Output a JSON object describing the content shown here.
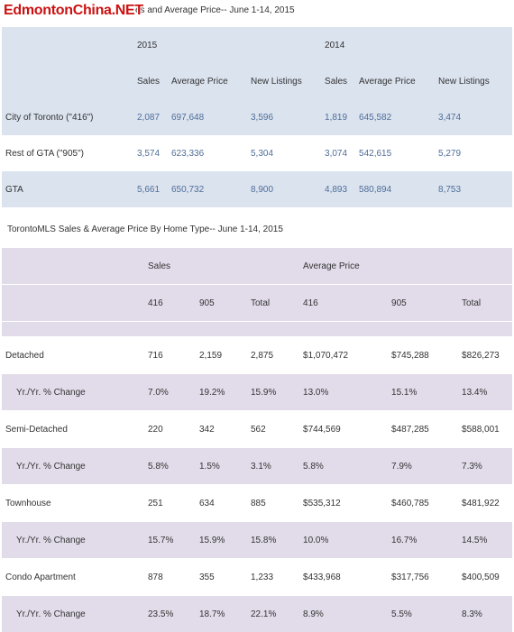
{
  "watermark": "EdmontonChina.NET",
  "table1": {
    "title": "es and Average Price-- June 1-14, 2015",
    "years": [
      "2015",
      "2014"
    ],
    "columns": [
      "Sales",
      "Average Price",
      "New Listings",
      "Sales",
      "Average Price",
      "New Listings"
    ],
    "rows": [
      {
        "label": "City of Toronto (\"416\")",
        "values": [
          "2,087",
          "697,648",
          "3,596",
          "1,819",
          "645,582",
          "3,474"
        ]
      },
      {
        "label": "Rest of GTA (\"905\")",
        "values": [
          "3,574",
          "623,336",
          "5,304",
          "3,074",
          "542,615",
          "5,279"
        ]
      },
      {
        "label": "GTA",
        "values": [
          "5,661",
          "650,732",
          "8,900",
          "4,893",
          "580,894",
          "8,753"
        ]
      }
    ]
  },
  "table2": {
    "title": "TorontoMLS Sales & Average Price  By Home Type-- June 1-14, 2015",
    "groups": [
      "Sales",
      "Average Price"
    ],
    "columns": [
      "416",
      "905",
      "Total",
      "416",
      "905",
      "Total"
    ],
    "rows": [
      {
        "label": "Detached",
        "values": [
          "716",
          "2,159",
          "2,875",
          "$1,070,472",
          "$745,288",
          "$826,273"
        ]
      },
      {
        "label": "Yr./Yr. % Change",
        "values": [
          "7.0%",
          "19.2%",
          "15.9%",
          "13.0%",
          "15.1%",
          "13.4%"
        ]
      },
      {
        "label": "Semi-Detached",
        "values": [
          "220",
          "342",
          "562",
          "$744,569",
          "$487,285",
          "$588,001"
        ]
      },
      {
        "label": "Yr./Yr. % Change",
        "values": [
          "5.8%",
          "1.5%",
          "3.1%",
          "5.8%",
          "7.9%",
          "7.3%"
        ]
      },
      {
        "label": "Townhouse",
        "values": [
          "251",
          "634",
          "885",
          "$535,312",
          "$460,785",
          "$481,922"
        ]
      },
      {
        "label": "Yr./Yr. % Change",
        "values": [
          "15.7%",
          "15.9%",
          "15.8%",
          "10.0%",
          "16.7%",
          "14.5%"
        ]
      },
      {
        "label": "Condo Apartment",
        "values": [
          "878",
          "355",
          "1,233",
          "$433,968",
          "$317,756",
          "$400,509"
        ]
      },
      {
        "label": "Yr./Yr. % Change",
        "values": [
          "23.5%",
          "18.7%",
          "22.1%",
          "8.9%",
          "5.5%",
          "8.3%"
        ]
      }
    ]
  }
}
